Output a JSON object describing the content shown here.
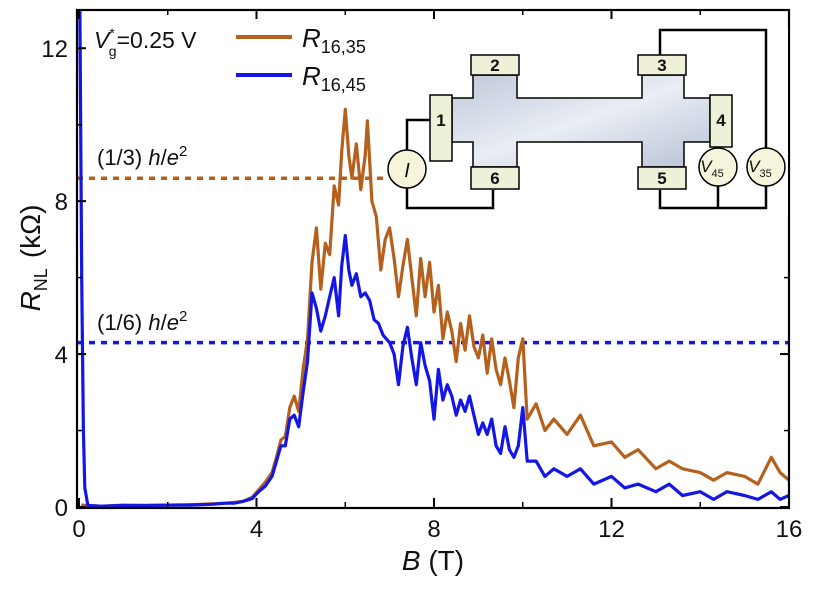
{
  "chart_data": {
    "type": "line",
    "title": "",
    "xlabel_var": "B",
    "xlabel_unit": " (T)",
    "ylabel_var": "R",
    "ylabel_sub": "NL",
    "ylabel_unit": "(kΩ)",
    "xlim": [
      0,
      16
    ],
    "ylim": [
      0,
      13
    ],
    "xticks": [
      0,
      4,
      8,
      12,
      16
    ],
    "xtick_labels": [
      "0",
      "4",
      "8",
      "12",
      "16"
    ],
    "yticks": [
      0,
      4,
      8,
      12
    ],
    "ytick_labels": [
      "0",
      "4",
      "8",
      "12"
    ],
    "annotation": {
      "v": "V",
      "sup": "*",
      "sub": "g",
      "rest": "=0.25 V"
    },
    "legend_position": "top-left",
    "series": [
      {
        "name": "R16,35",
        "label_main": "R",
        "label_sub": "16,35",
        "color": "#b5601c",
        "points": [
          [
            0.05,
            0.05
          ],
          [
            0.5,
            0.02
          ],
          [
            1,
            0.05
          ],
          [
            1.5,
            0.04
          ],
          [
            2,
            0.05
          ],
          [
            2.5,
            0.06
          ],
          [
            3,
            0.08
          ],
          [
            3.3,
            0.1
          ],
          [
            3.5,
            0.12
          ],
          [
            3.7,
            0.15
          ],
          [
            3.9,
            0.25
          ],
          [
            4.05,
            0.45
          ],
          [
            4.2,
            0.65
          ],
          [
            4.35,
            0.9
          ],
          [
            4.45,
            1.3
          ],
          [
            4.55,
            1.75
          ],
          [
            4.65,
            1.85
          ],
          [
            4.75,
            2.6
          ],
          [
            4.85,
            2.9
          ],
          [
            4.95,
            2.5
          ],
          [
            5.05,
            3.6
          ],
          [
            5.15,
            4.4
          ],
          [
            5.25,
            6.4
          ],
          [
            5.35,
            7.3
          ],
          [
            5.45,
            5.7
          ],
          [
            5.55,
            6.9
          ],
          [
            5.65,
            6.6
          ],
          [
            5.75,
            8.4
          ],
          [
            5.85,
            7.9
          ],
          [
            5.92,
            9.3
          ],
          [
            6.0,
            10.4
          ],
          [
            6.08,
            9.2
          ],
          [
            6.15,
            8.6
          ],
          [
            6.25,
            9.5
          ],
          [
            6.35,
            8.3
          ],
          [
            6.45,
            9.2
          ],
          [
            6.5,
            10.1
          ],
          [
            6.6,
            8.0
          ],
          [
            6.7,
            7.6
          ],
          [
            6.8,
            6.2
          ],
          [
            6.9,
            7.0
          ],
          [
            7.0,
            7.3
          ],
          [
            7.1,
            6.5
          ],
          [
            7.2,
            5.5
          ],
          [
            7.3,
            6.3
          ],
          [
            7.4,
            7.0
          ],
          [
            7.5,
            6.0
          ],
          [
            7.6,
            5.0
          ],
          [
            7.7,
            6.5
          ],
          [
            7.8,
            5.5
          ],
          [
            7.9,
            6.4
          ],
          [
            8.0,
            5.1
          ],
          [
            8.1,
            5.8
          ],
          [
            8.2,
            4.4
          ],
          [
            8.3,
            5.1
          ],
          [
            8.4,
            4.6
          ],
          [
            8.5,
            3.8
          ],
          [
            8.6,
            4.8
          ],
          [
            8.7,
            4.1
          ],
          [
            8.8,
            5.0
          ],
          [
            8.9,
            4.2
          ],
          [
            9.0,
            3.9
          ],
          [
            9.1,
            4.5
          ],
          [
            9.2,
            3.5
          ],
          [
            9.3,
            4.4
          ],
          [
            9.4,
            3.6
          ],
          [
            9.5,
            3.2
          ],
          [
            9.6,
            3.9
          ],
          [
            9.7,
            3.3
          ],
          [
            9.8,
            2.6
          ],
          [
            9.9,
            3.9
          ],
          [
            10.0,
            4.4
          ],
          [
            10.1,
            2.3
          ],
          [
            10.3,
            2.7
          ],
          [
            10.5,
            2.0
          ],
          [
            10.7,
            2.3
          ],
          [
            11.0,
            1.9
          ],
          [
            11.3,
            2.4
          ],
          [
            11.6,
            1.6
          ],
          [
            12.0,
            1.7
          ],
          [
            12.3,
            1.3
          ],
          [
            12.6,
            1.5
          ],
          [
            13.0,
            1.0
          ],
          [
            13.3,
            1.2
          ],
          [
            13.6,
            1.0
          ],
          [
            14.0,
            0.9
          ],
          [
            14.3,
            0.7
          ],
          [
            14.6,
            0.9
          ],
          [
            15.0,
            0.8
          ],
          [
            15.3,
            0.6
          ],
          [
            15.6,
            1.3
          ],
          [
            15.8,
            0.9
          ],
          [
            16.0,
            0.7
          ]
        ]
      },
      {
        "name": "R16,45",
        "label_main": "R",
        "label_sub": "16,45",
        "color": "#1416e6",
        "points": [
          [
            0.02,
            13.0
          ],
          [
            0.06,
            6.0
          ],
          [
            0.1,
            2.0
          ],
          [
            0.13,
            0.5
          ],
          [
            0.2,
            0.04
          ],
          [
            0.5,
            0.02
          ],
          [
            1,
            0.04
          ],
          [
            1.5,
            0.04
          ],
          [
            2,
            0.05
          ],
          [
            2.5,
            0.05
          ],
          [
            3,
            0.07
          ],
          [
            3.3,
            0.1
          ],
          [
            3.5,
            0.1
          ],
          [
            3.7,
            0.15
          ],
          [
            3.9,
            0.22
          ],
          [
            4.05,
            0.4
          ],
          [
            4.2,
            0.55
          ],
          [
            4.35,
            0.8
          ],
          [
            4.45,
            1.2
          ],
          [
            4.55,
            1.6
          ],
          [
            4.65,
            1.6
          ],
          [
            4.75,
            2.3
          ],
          [
            4.85,
            2.4
          ],
          [
            4.95,
            2.1
          ],
          [
            5.05,
            3.0
          ],
          [
            5.15,
            3.8
          ],
          [
            5.25,
            5.6
          ],
          [
            5.35,
            5.2
          ],
          [
            5.45,
            4.6
          ],
          [
            5.55,
            5.0
          ],
          [
            5.65,
            5.5
          ],
          [
            5.75,
            6.0
          ],
          [
            5.85,
            5.0
          ],
          [
            5.92,
            6.3
          ],
          [
            6.0,
            7.1
          ],
          [
            6.08,
            6.2
          ],
          [
            6.15,
            5.8
          ],
          [
            6.25,
            6.1
          ],
          [
            6.35,
            5.5
          ],
          [
            6.45,
            5.6
          ],
          [
            6.55,
            5.4
          ],
          [
            6.65,
            4.9
          ],
          [
            6.75,
            4.8
          ],
          [
            6.85,
            4.5
          ],
          [
            7.0,
            4.3
          ],
          [
            7.1,
            4.0
          ],
          [
            7.2,
            3.2
          ],
          [
            7.3,
            4.2
          ],
          [
            7.4,
            4.7
          ],
          [
            7.5,
            3.9
          ],
          [
            7.6,
            3.2
          ],
          [
            7.7,
            4.3
          ],
          [
            7.8,
            3.7
          ],
          [
            7.9,
            3.3
          ],
          [
            8.0,
            2.3
          ],
          [
            8.1,
            3.6
          ],
          [
            8.2,
            2.8
          ],
          [
            8.3,
            3.2
          ],
          [
            8.4,
            2.9
          ],
          [
            8.5,
            2.4
          ],
          [
            8.6,
            2.8
          ],
          [
            8.7,
            2.5
          ],
          [
            8.8,
            2.9
          ],
          [
            8.9,
            2.4
          ],
          [
            9.0,
            1.9
          ],
          [
            9.1,
            2.2
          ],
          [
            9.2,
            1.9
          ],
          [
            9.3,
            2.3
          ],
          [
            9.4,
            1.6
          ],
          [
            9.5,
            1.4
          ],
          [
            9.6,
            2.1
          ],
          [
            9.7,
            1.5
          ],
          [
            9.8,
            1.3
          ],
          [
            9.9,
            1.6
          ],
          [
            10.0,
            2.6
          ],
          [
            10.1,
            1.2
          ],
          [
            10.3,
            1.2
          ],
          [
            10.5,
            0.8
          ],
          [
            10.7,
            1.0
          ],
          [
            11.0,
            0.8
          ],
          [
            11.3,
            1.0
          ],
          [
            11.6,
            0.6
          ],
          [
            12.0,
            0.8
          ],
          [
            12.3,
            0.5
          ],
          [
            12.6,
            0.6
          ],
          [
            13.0,
            0.4
          ],
          [
            13.3,
            0.6
          ],
          [
            13.6,
            0.3
          ],
          [
            14.0,
            0.4
          ],
          [
            14.3,
            0.2
          ],
          [
            14.6,
            0.4
          ],
          [
            15.0,
            0.3
          ],
          [
            15.3,
            0.2
          ],
          [
            15.6,
            0.4
          ],
          [
            15.8,
            0.2
          ],
          [
            16.0,
            0.3
          ]
        ]
      }
    ],
    "reference_lines": [
      {
        "name": "third",
        "y": 8.6,
        "color": "#b5601c",
        "frac": "(1/3) ",
        "h": "h",
        "slash": "/",
        "e": "e",
        "exp": "2"
      },
      {
        "name": "sixth",
        "y": 4.3,
        "color": "#1416e6",
        "frac": "(1/6) ",
        "h": "h",
        "slash": "/",
        "e": "e",
        "exp": "2"
      }
    ],
    "inset": {
      "description": "Hall-bar device schematic",
      "contacts": [
        "1",
        "2",
        "3",
        "4",
        "5",
        "6"
      ],
      "source_label": "I",
      "meter1": {
        "main": "V",
        "sub": "45"
      },
      "meter2": {
        "main": "V",
        "sub": "35"
      }
    }
  }
}
